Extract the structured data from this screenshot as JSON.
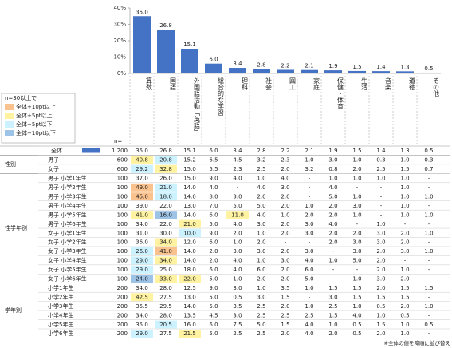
{
  "chart_data": {
    "type": "bar",
    "color": "#4472c4",
    "categories": [
      "算数",
      "国語",
      "外国語活動「英語」",
      "総合的な学習",
      "理科",
      "社会",
      "図工",
      "家庭",
      "保健・体育",
      "生活",
      "音楽",
      "道徳",
      "その他"
    ],
    "values": [
      35.0,
      26.8,
      15.1,
      6.0,
      3.4,
      2.8,
      2.2,
      2.1,
      1.9,
      1.5,
      1.4,
      1.3,
      0.5
    ],
    "value_labels": [
      "35.0",
      "26.8",
      "15.1",
      "6.0",
      "3.4",
      "2.8",
      "2.2",
      "2.1",
      "1.9",
      "1.5",
      "1.4",
      "1.3",
      "0.5"
    ],
    "ylim": [
      0,
      40
    ],
    "yticks": [
      {
        "value": 0,
        "label": "0%"
      },
      {
        "value": 10,
        "label": "10%"
      },
      {
        "value": 20,
        "label": "20%"
      },
      {
        "value": 30,
        "label": "30%"
      },
      {
        "value": 40,
        "label": "40%"
      }
    ]
  },
  "legend": {
    "title": "n=30以上で",
    "items": [
      {
        "label": "全体+10pt以上",
        "color": "#fac28e"
      },
      {
        "label": "全体+5pt以上",
        "color": "#fff2a0"
      },
      {
        "label": "全体−5pt以下",
        "color": "#ccf2ff"
      },
      {
        "label": "全体−10pt以下",
        "color": "#9dc3e6"
      }
    ]
  },
  "table": {
    "n_header": "n=",
    "total": {
      "label": "全体",
      "n": "1,200",
      "values": [
        "35.0",
        "26.8",
        "15.1",
        "6.0",
        "3.4",
        "2.8",
        "2.2",
        "2.1",
        "1.9",
        "1.5",
        "1.4",
        "1.3",
        "0.5"
      ]
    },
    "groups": [
      {
        "label": "性別",
        "rows": [
          {
            "label": "男子",
            "n": "600",
            "values": [
              "40.8",
              "20.8",
              "15.2",
              "6.5",
              "4.5",
              "3.2",
              "2.3",
              "1.0",
              "3.0",
              "1.0",
              "0.3",
              "1.0",
              "0.3"
            ],
            "fills": [
              "#fff2a0",
              "#ccf2ff",
              null,
              null,
              null,
              null,
              null,
              null,
              null,
              null,
              null,
              null,
              null
            ]
          },
          {
            "label": "女子",
            "n": "600",
            "values": [
              "29.2",
              "32.8",
              "15.0",
              "5.5",
              "2.3",
              "2.5",
              "2.0",
              "3.2",
              "0.8",
              "2.0",
              "2.5",
              "1.5",
              "0.7"
            ],
            "fills": [
              "#ccf2ff",
              "#fff2a0",
              null,
              null,
              null,
              null,
              null,
              null,
              null,
              null,
              null,
              null,
              null
            ]
          }
        ]
      },
      {
        "label": "性学年別",
        "rows": [
          {
            "label": "男子 小学1年生",
            "n": "100",
            "values": [
              "37.0",
              "26.0",
              "15.0",
              "9.0",
              "4.0",
              "1.0",
              "4.0",
              "-",
              "1.0",
              "1.0",
              "1.0",
              "1.0",
              "-"
            ]
          },
          {
            "label": "男子 小学2年生",
            "n": "100",
            "values": [
              "49.0",
              "21.0",
              "14.0",
              "4.0",
              "-",
              "4.0",
              "3.0",
              "-",
              "4.0",
              "-",
              "-",
              "1.0",
              "-"
            ],
            "fills": [
              "#fac28e",
              "#ccf2ff",
              null,
              null,
              null,
              null,
              null,
              null,
              null,
              null,
              null,
              null,
              null
            ]
          },
          {
            "label": "男子 小学3年生",
            "n": "100",
            "values": [
              "45.0",
              "18.0",
              "14.0",
              "8.0",
              "3.0",
              "2.0",
              "2.0",
              "-",
              "5.0",
              "1.0",
              "-",
              "1.0",
              "1.0"
            ],
            "fills": [
              "#fac28e",
              "#ccf2ff",
              null,
              null,
              null,
              null,
              null,
              null,
              null,
              null,
              null,
              null,
              null
            ]
          },
          {
            "label": "男子 小学4年生",
            "n": "100",
            "values": [
              "39.0",
              "22.0",
              "13.0",
              "7.0",
              "5.0",
              "5.0",
              "2.0",
              "1.0",
              "2.0",
              "3.0",
              "-",
              "1.0",
              "-"
            ]
          },
          {
            "label": "男子 小学5年生",
            "n": "100",
            "values": [
              "41.0",
              "16.0",
              "14.0",
              "6.0",
              "11.0",
              "4.0",
              "1.0",
              "2.0",
              "2.0",
              "1.0",
              "-",
              "1.0",
              "1.0"
            ],
            "fills": [
              "#fff2a0",
              "#9dc3e6",
              null,
              null,
              "#fff2a0",
              null,
              null,
              null,
              null,
              null,
              null,
              null,
              null
            ]
          },
          {
            "label": "男子 小学6年生",
            "n": "100",
            "values": [
              "34.0",
              "22.0",
              "21.0",
              "5.0",
              "4.0",
              "3.0",
              "2.0",
              "3.0",
              "4.0",
              "-",
              "1.0",
              "-",
              "-"
            ],
            "fills": [
              null,
              null,
              "#fff2a0",
              null,
              null,
              null,
              null,
              null,
              null,
              null,
              null,
              null,
              null
            ]
          },
          {
            "label": "女子 小学1年生",
            "n": "100",
            "values": [
              "31.0",
              "30.0",
              "10.0",
              "9.0",
              "2.0",
              "1.0",
              "2.0",
              "3.0",
              "2.0",
              "2.0",
              "3.0",
              "2.0",
              "1.0"
            ],
            "fills": [
              null,
              null,
              "#ccf2ff",
              null,
              null,
              null,
              null,
              null,
              null,
              null,
              null,
              null,
              null
            ]
          },
          {
            "label": "女子 小学2年生",
            "n": "100",
            "values": [
              "36.0",
              "34.0",
              "12.0",
              "6.0",
              "1.0",
              "2.0",
              "-",
              "-",
              "2.0",
              "3.0",
              "3.0",
              "2.0",
              "-"
            ],
            "fills": [
              null,
              "#fff2a0",
              null,
              null,
              null,
              null,
              null,
              null,
              null,
              null,
              null,
              null,
              null
            ]
          },
          {
            "label": "女子 小学3年生",
            "n": "100",
            "values": [
              "26.0",
              "41.0",
              "14.0",
              "2.0",
              "3.0",
              "3.0",
              "2.0",
              "3.0",
              "-",
              "3.0",
              "2.0",
              "3.0",
              "1.0"
            ],
            "fills": [
              "#ccf2ff",
              "#fac28e",
              null,
              null,
              null,
              null,
              null,
              null,
              null,
              null,
              null,
              null,
              null
            ]
          },
          {
            "label": "女子 小学4年生",
            "n": "100",
            "values": [
              "29.0",
              "34.0",
              "14.0",
              "2.0",
              "4.0",
              "1.0",
              "3.0",
              "4.0",
              "1.0",
              "5.0",
              "2.0",
              "-",
              "-"
            ],
            "fills": [
              "#ccf2ff",
              "#fff2a0",
              null,
              null,
              null,
              null,
              null,
              null,
              null,
              null,
              null,
              null,
              null
            ]
          },
          {
            "label": "女子 小学5年生",
            "n": "100",
            "values": [
              "29.0",
              "25.0",
              "18.0",
              "6.0",
              "4.0",
              "6.0",
              "2.0",
              "6.0",
              "-",
              "-",
              "2.0",
              "1.0",
              "-"
            ],
            "fills": [
              "#ccf2ff",
              null,
              null,
              null,
              null,
              null,
              null,
              null,
              null,
              null,
              null,
              null,
              null
            ]
          },
          {
            "label": "女子 小学6年生",
            "n": "100",
            "values": [
              "24.0",
              "33.0",
              "22.0",
              "5.0",
              "1.0",
              "2.0",
              "2.0",
              "5.0",
              "-",
              "1.0",
              "3.0",
              "2.0",
              "-"
            ],
            "fills": [
              "#9dc3e6",
              "#fff2a0",
              "#fff2a0",
              null,
              null,
              null,
              null,
              null,
              null,
              null,
              null,
              null,
              null
            ]
          }
        ]
      },
      {
        "label": "学年別",
        "rows": [
          {
            "label": "小学1年生",
            "n": "200",
            "values": [
              "34.0",
              "28.0",
              "12.5",
              "9.0",
              "3.0",
              "1.0",
              "3.5",
              "1.0",
              "1.5",
              "1.5",
              "2.0",
              "1.5",
              "1.5"
            ]
          },
          {
            "label": "小学2年生",
            "n": "200",
            "values": [
              "42.5",
              "27.5",
              "13.0",
              "5.0",
              "0.5",
              "3.0",
              "1.5",
              "-",
              "3.0",
              "1.5",
              "1.5",
              "1.5",
              "-"
            ],
            "fills": [
              "#fff2a0",
              null,
              null,
              null,
              null,
              null,
              null,
              null,
              null,
              null,
              null,
              null,
              null
            ]
          },
          {
            "label": "小学3年生",
            "n": "200",
            "values": [
              "35.5",
              "29.5",
              "14.0",
              "5.0",
              "3.5",
              "2.5",
              "2.0",
              "1.0",
              "2.5",
              "1.0",
              "0.5",
              "2.0",
              "1.0"
            ]
          },
          {
            "label": "小学4年生",
            "n": "200",
            "values": [
              "34.0",
              "28.0",
              "13.5",
              "4.5",
              "3.0",
              "2.5",
              "2.5",
              "2.5",
              "1.5",
              "4.0",
              "1.0",
              "0.5",
              "-"
            ]
          },
          {
            "label": "小学5年生",
            "n": "200",
            "values": [
              "35.0",
              "20.5",
              "16.0",
              "6.0",
              "7.5",
              "5.0",
              "1.5",
              "4.0",
              "1.0",
              "0.5",
              "1.5",
              "1.0",
              "0.5"
            ],
            "fills": [
              null,
              "#ccf2ff",
              null,
              null,
              null,
              null,
              null,
              null,
              null,
              null,
              null,
              null,
              null
            ]
          },
          {
            "label": "小学6年生",
            "n": "200",
            "values": [
              "29.0",
              "27.5",
              "21.5",
              "5.0",
              "2.5",
              "2.5",
              "2.0",
              "4.0",
              "2.0",
              "0.5",
              "2.0",
              "1.0",
              "-"
            ],
            "fills": [
              "#ccf2ff",
              null,
              "#fff2a0",
              null,
              null,
              null,
              null,
              null,
              null,
              null,
              null,
              null,
              null
            ]
          }
        ]
      }
    ],
    "footnote": "※全体の値を降順に並び替え"
  }
}
